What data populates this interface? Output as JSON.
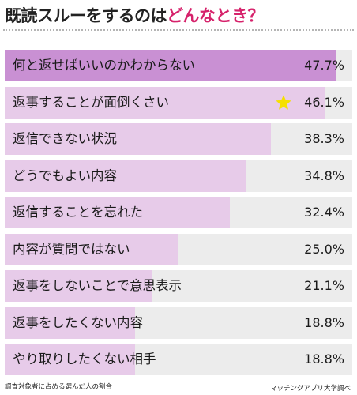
{
  "title_main": "既読スルーをするのは",
  "title_highlight": "どんなとき？",
  "footer_note": "調査対象者に占める選んだ人の割合",
  "source": "マッチングアプリ大学調べ",
  "colors": {
    "highlight_bar": "#c990d3",
    "bar": "#e7cbe9",
    "track": "#ececec",
    "title_accent": "#d6226b",
    "star": "#f5e000"
  },
  "star_icon": "star-icon",
  "chart_data": {
    "type": "bar",
    "orientation": "horizontal",
    "unit": "%",
    "xlim": [
      0,
      50
    ],
    "categories": [
      "何と返せばいいのかわからない",
      "返事することが面倒くさい",
      "返信できない状況",
      "どうでもよい内容",
      "返信することを忘れた",
      "内容が質問ではない",
      "返事をしないことで意思表示",
      "返事をしたくない内容",
      "やり取りしたくない相手"
    ],
    "values": [
      47.7,
      46.1,
      38.3,
      34.8,
      32.4,
      25.0,
      21.1,
      18.8,
      18.8
    ],
    "value_labels": [
      "47.7%",
      "46.1%",
      "38.3%",
      "34.8%",
      "32.4%",
      "25.0%",
      "21.1%",
      "18.8%",
      "18.8%"
    ],
    "highlighted_index": 0,
    "starred_index": 1
  }
}
